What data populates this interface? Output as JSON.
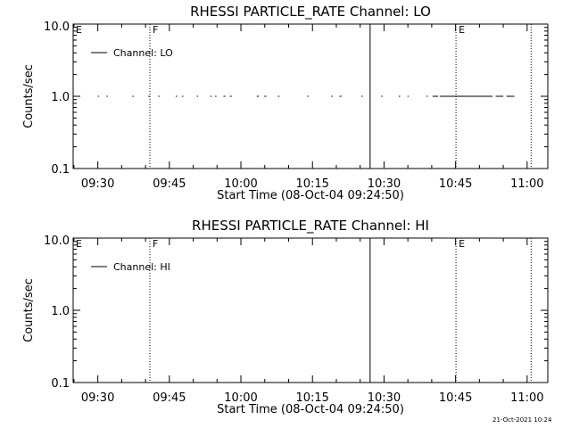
{
  "chart_data": [
    {
      "type": "line",
      "title": "RHESSI PARTICLE_RATE Channel: LO",
      "xlabel": "Start Time (08-Oct-04 09:24:50)",
      "ylabel": "Counts/sec",
      "xlim": [
        "09:24:50",
        "11:04:20"
      ],
      "ylim": [
        0.1,
        10.0
      ],
      "yscale": "log",
      "x_ticks": [
        "09:30",
        "09:45",
        "10:00",
        "10:15",
        "10:30",
        "10:45",
        "11:00"
      ],
      "y_ticks": [
        "0.1",
        "1.0",
        "10.0"
      ],
      "legend": {
        "label": "Channel: LO",
        "placement": "top-left"
      },
      "series": [
        {
          "name": "Channel: LO",
          "segments": [
            [
              "09:30:00",
              "09:30:05"
            ],
            [
              "09:31:50",
              "09:31:55"
            ],
            [
              "09:37:15",
              "09:37:25"
            ],
            [
              "09:40:35",
              "09:40:40"
            ],
            [
              "09:42:40",
              "09:42:45"
            ],
            [
              "09:46:20",
              "09:46:35"
            ],
            [
              "09:47:40",
              "09:47:55"
            ],
            [
              "09:50:45",
              "09:50:50"
            ],
            [
              "09:53:35",
              "09:53:40"
            ],
            [
              "09:54:35",
              "09:54:40"
            ],
            [
              "09:56:20",
              "09:56:45"
            ],
            [
              "09:57:40",
              "09:58:05"
            ],
            [
              "10:03:20",
              "10:03:45"
            ],
            [
              "10:04:55",
              "10:05:20"
            ],
            [
              "10:07:45",
              "10:08:05"
            ],
            [
              "10:13:55",
              "10:14:00"
            ],
            [
              "10:18:55",
              "10:19:10"
            ],
            [
              "10:20:40",
              "10:21:05"
            ],
            [
              "10:25:15",
              "10:25:20"
            ],
            [
              "10:29:25",
              "10:29:30"
            ],
            [
              "10:33:05",
              "10:33:20"
            ],
            [
              "10:34:55",
              "10:35:00"
            ],
            [
              "10:38:55",
              "10:39:05"
            ],
            [
              "10:40:10",
              "10:41:20"
            ],
            [
              "10:41:40",
              "10:52:45"
            ],
            [
              "10:53:25",
              "10:55:00"
            ],
            [
              "10:55:40",
              "10:57:20"
            ]
          ],
          "value": 1.0
        }
      ],
      "markers": [
        {
          "label": "E",
          "time": "09:24:50",
          "style": "none"
        },
        {
          "label": "F",
          "time": "09:40:55",
          "style": "dotted"
        },
        {
          "label": "",
          "time": "10:27:05",
          "style": "solid"
        },
        {
          "label": "E",
          "time": "10:45:05",
          "style": "dotted"
        },
        {
          "label": "",
          "time": "11:00:50",
          "style": "dotted"
        }
      ]
    },
    {
      "type": "line",
      "title": "RHESSI PARTICLE_RATE Channel: HI",
      "xlabel": "Start Time (08-Oct-04 09:24:50)",
      "ylabel": "Counts/sec",
      "xlim": [
        "09:24:50",
        "11:04:20"
      ],
      "ylim": [
        0.1,
        10.0
      ],
      "yscale": "log",
      "x_ticks": [
        "09:30",
        "09:45",
        "10:00",
        "10:15",
        "10:30",
        "10:45",
        "11:00"
      ],
      "y_ticks": [
        "0.1",
        "1.0",
        "10.0"
      ],
      "legend": {
        "label": "Channel: HI",
        "placement": "top-left"
      },
      "series": [
        {
          "name": "Channel: HI",
          "segments": [],
          "value": 1.0
        }
      ],
      "markers": [
        {
          "label": "E",
          "time": "09:24:50",
          "style": "none"
        },
        {
          "label": "F",
          "time": "09:40:55",
          "style": "dotted"
        },
        {
          "label": "",
          "time": "10:27:05",
          "style": "solid"
        },
        {
          "label": "E",
          "time": "10:45:05",
          "style": "dotted"
        },
        {
          "label": "",
          "time": "11:00:50",
          "style": "dotted"
        }
      ]
    }
  ],
  "footer": {
    "timestamp": "21-Oct-2021 10:24"
  }
}
